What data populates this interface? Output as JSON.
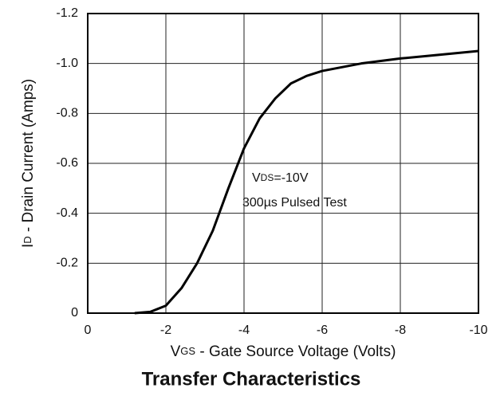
{
  "chart_data": {
    "type": "line",
    "title": "Transfer Characteristics",
    "x_label": {
      "symbol": "V",
      "subscript": "GS",
      "text": " - Gate Source Voltage (Volts)"
    },
    "y_label": {
      "symbol": "I",
      "subscript": "D",
      "text": " - Drain Current (Amps)"
    },
    "annotation": {
      "line1": {
        "symbol": "V",
        "subscript": "DS",
        "text": "=-10V"
      },
      "line2": "300µs Pulsed Test"
    },
    "xlim": [
      0,
      -10
    ],
    "xticks": [
      0,
      -2,
      -4,
      -6,
      -8,
      -10
    ],
    "ylim": [
      0,
      -1.2
    ],
    "yticks": [
      0,
      -0.2,
      -0.4,
      -0.6,
      -0.8,
      {
        "value": -1,
        "label": "-1.0"
      },
      -1.2
    ],
    "grid": true,
    "series": [
      {
        "color": "#000000",
        "x": [
          -1.2,
          -1.6,
          -2,
          -2.4,
          -2.8,
          -3.2,
          -3.6,
          -4,
          -4.4,
          -4.8,
          -5.2,
          -5.6,
          -6,
          -7,
          -8,
          -9,
          -10
        ],
        "values": [
          0,
          -0.005,
          -0.03,
          -0.1,
          -0.2,
          -0.33,
          -0.5,
          -0.66,
          -0.78,
          -0.86,
          -0.92,
          -0.95,
          -0.97,
          -1.0,
          -1.02,
          -1.035,
          -1.05
        ]
      }
    ]
  }
}
